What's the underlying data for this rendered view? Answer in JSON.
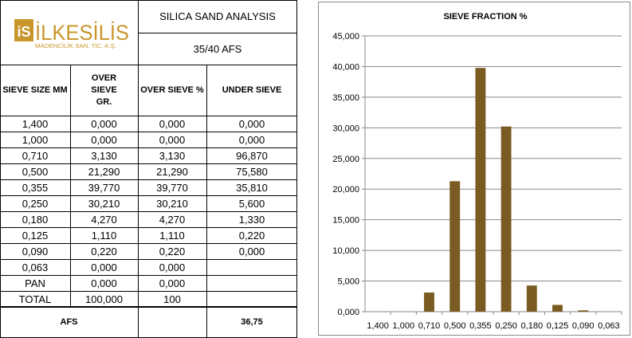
{
  "logo": {
    "mark": "iS",
    "name": "İLKESİLİS",
    "subtitle": "MADENCİLİK SAN. TİC. A.Ş."
  },
  "header": {
    "title": "SILICA SAND ANALYSIS",
    "grade": "35/40 AFS"
  },
  "columns": [
    "SIEVE SIZE MM",
    "OVER SIEVE GR.",
    "OVER SIEVE %",
    "UNDER SIEVE"
  ],
  "rows": [
    [
      "1,400",
      "0,000",
      "0,000",
      "0,000"
    ],
    [
      "1,000",
      "0,000",
      "0,000",
      "0,000"
    ],
    [
      "0,710",
      "3,130",
      "3,130",
      "96,870"
    ],
    [
      "0,500",
      "21,290",
      "21,290",
      "75,580"
    ],
    [
      "0,355",
      "39,770",
      "39,770",
      "35,810"
    ],
    [
      "0,250",
      "30,210",
      "30,210",
      "5,600"
    ],
    [
      "0,180",
      "4,270",
      "4,270",
      "1,330"
    ],
    [
      "0,125",
      "1,110",
      "1,110",
      "0,220"
    ],
    [
      "0,090",
      "0,220",
      "0,220",
      "0,000"
    ],
    [
      "0,063",
      "0,000",
      "0,000",
      ""
    ],
    [
      "PAN",
      "0,000",
      "0,000",
      ""
    ],
    [
      "TOTAL",
      "100,000",
      "100",
      ""
    ]
  ],
  "footer": {
    "label": "AFS",
    "value": "36,75"
  },
  "colors": {
    "bar": "#7a5c22",
    "logo_gold": "#c9962c"
  },
  "chart_data": {
    "type": "bar",
    "title": "SIEVE FRACTION %",
    "categories": [
      "1,400",
      "1,000",
      "0,710",
      "0,500",
      "0,355",
      "0,250",
      "0,180",
      "0,125",
      "0,090",
      "0,063"
    ],
    "values": [
      0,
      0,
      3.13,
      21.29,
      39.77,
      30.21,
      4.27,
      1.11,
      0.22,
      0
    ],
    "ylim": [
      0,
      45
    ],
    "ytick_step": 5,
    "ytick_labels": [
      "0,000",
      "5,000",
      "10,000",
      "15,000",
      "20,000",
      "25,000",
      "30,000",
      "35,000",
      "40,000",
      "45,000"
    ],
    "grid": true,
    "legend": "none"
  }
}
